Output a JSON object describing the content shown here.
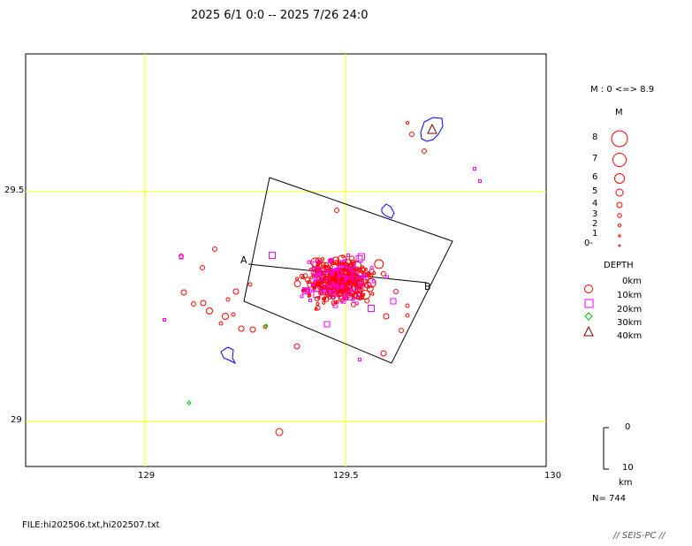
{
  "header": {
    "period": "2025 6/1 0:0 -- 2025 7/26 24:0"
  },
  "map": {
    "lon_range": [
      128.73,
      130.03
    ],
    "lat_range": [
      28.9,
      29.81
    ],
    "x_ticks": [
      "129",
      "129.5",
      "130"
    ],
    "y_ticks": [
      "29.5",
      "29"
    ],
    "grid_color": "#ffff00",
    "coast_color": "#0000ff",
    "cross_section": {
      "label_a": "A",
      "label_b": "B"
    }
  },
  "legend": {
    "magnitude_range": "M : 0 <=> 8.9",
    "magnitude_title": "M",
    "magnitudes": [
      "8",
      "7",
      "6",
      "5",
      "4",
      "3",
      "2",
      "1",
      "0-"
    ],
    "depth_title": "DEPTH",
    "depths": [
      {
        "label": "0km",
        "color": "#ff0000",
        "shape": "none"
      },
      {
        "label": "10km",
        "color": "#ff0000",
        "shape": "circle"
      },
      {
        "label": "20km",
        "color": "#ff00ff",
        "shape": "square"
      },
      {
        "label": "30km",
        "color": "#00c000",
        "shape": "diamond"
      },
      {
        "label": "40km",
        "color": "#800000",
        "shape": "triangle"
      }
    ]
  },
  "scale_bar": {
    "top": "0",
    "bottom": "10",
    "unit": "km"
  },
  "count": "N= 744",
  "file": "FILE:hi202506.txt,hi202507.txt",
  "credit": "// SEIS-PC //"
}
